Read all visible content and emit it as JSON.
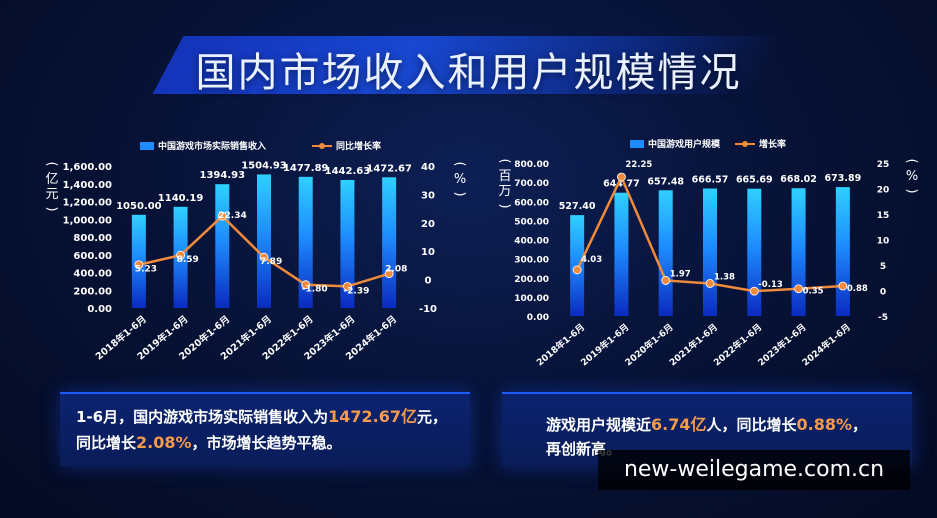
{
  "title": "国内市场收入和用户规模情况",
  "chart_data": [
    {
      "type": "bar",
      "categories": [
        "2018年1-6月",
        "2019年1-6月",
        "2020年1-6月",
        "2021年1-6月",
        "2022年1-6月",
        "2023年1-6月",
        "2024年1-6月"
      ],
      "series": [
        {
          "name": "中国游戏市场实际销售收入",
          "type": "bar",
          "axis": "left",
          "values": [
            1050.0,
            1140.19,
            1394.93,
            1504.93,
            1477.89,
            1442.63,
            1472.67
          ],
          "labels": [
            "1050.00",
            "1140.19",
            "1394.93",
            "1504.93",
            "1477.89",
            "1442.63",
            "1472.67"
          ]
        },
        {
          "name": "同比增长率",
          "type": "line",
          "axis": "right",
          "values": [
            5.23,
            8.59,
            22.34,
            7.89,
            -1.8,
            -2.39,
            2.08
          ],
          "labels": [
            "5.23",
            "8.59",
            "22.34",
            "7.89",
            "-1.80",
            "-2.39",
            "2.08"
          ]
        }
      ],
      "ylabel": "亿元",
      "ylabel2": "%",
      "ylim": [
        0,
        1600
      ],
      "yticks": [
        "1,600.00",
        "1,400.00",
        "1,200.00",
        "1,000.00",
        "800.00",
        "600.00",
        "400.00",
        "200.00",
        "0.00"
      ],
      "y2lim": [
        -10,
        40
      ],
      "y2ticks": [
        "40",
        "30",
        "20",
        "10",
        "0",
        "-10"
      ],
      "legend": "top",
      "bar_color": "#1e8cff",
      "line_color": "#f08a3c"
    },
    {
      "type": "bar",
      "categories": [
        "2018年1-6月",
        "2019年1-6月",
        "2020年1-6月",
        "2021年1-6月",
        "2022年1-6月",
        "2023年1-6月",
        "2024年1-6月"
      ],
      "series": [
        {
          "name": "中国游戏用户规模",
          "type": "bar",
          "axis": "left",
          "values": [
            527.4,
            644.77,
            657.48,
            666.57,
            665.69,
            668.02,
            673.89
          ],
          "labels": [
            "527.40",
            "644.77",
            "657.48",
            "666.57",
            "665.69",
            "668.02",
            "673.89"
          ]
        },
        {
          "name": "增长率",
          "type": "line",
          "axis": "right",
          "values": [
            4.03,
            22.25,
            1.97,
            1.38,
            -0.13,
            0.35,
            0.88
          ],
          "labels": [
            "4.03",
            "22.25",
            "1.97",
            "1.38",
            "-0.13",
            "0.35",
            "0.88"
          ]
        }
      ],
      "ylabel": "百万",
      "ylabel2": "%",
      "ylim": [
        0,
        800
      ],
      "yticks": [
        "800.00",
        "700.00",
        "600.00",
        "500.00",
        "400.00",
        "300.00",
        "200.00",
        "100.00",
        "0.00"
      ],
      "y2lim": [
        -5,
        25
      ],
      "y2ticks": [
        "25",
        "20",
        "15",
        "10",
        "5",
        "0",
        "-5"
      ],
      "legend": "top",
      "bar_color": "#1e8cff",
      "line_color": "#f08a3c"
    }
  ],
  "panels": {
    "left": {
      "line1_a": "1-6月，国内游戏市场实际销售收入为",
      "line1_hl": "1472.67亿",
      "line1_b": "元，",
      "line2_a": "同比增长",
      "line2_hl": "2.08%",
      "line2_b": "，市场增长趋势平稳。"
    },
    "right": {
      "line1_a": "游戏用户规模近",
      "line1_hl": "6.74亿",
      "line1_b": "人，同比增长",
      "line1_hl2": "0.88%",
      "line1_c": "，",
      "line2_a": "再创新高。"
    }
  },
  "watermark": "new-weilegame.com.cn"
}
